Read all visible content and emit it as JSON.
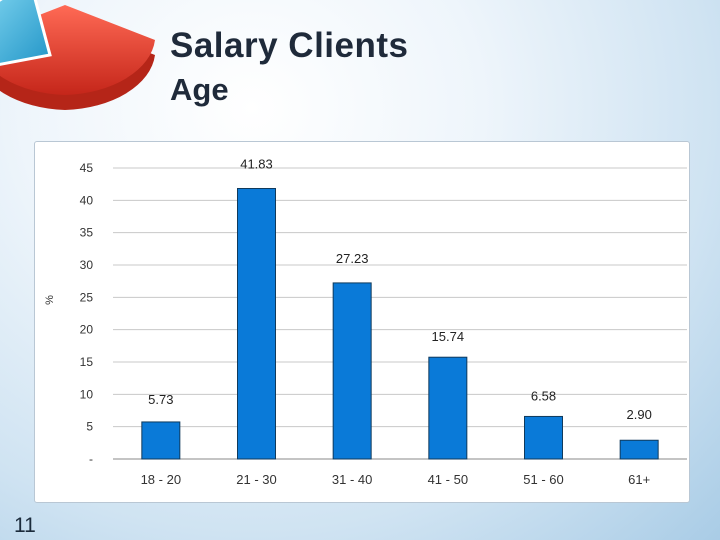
{
  "slide": {
    "title": "Salary Clients",
    "subtitle": "Age",
    "page_number": "11"
  },
  "colors": {
    "bar": "#0a7ad8",
    "bar_outline": "#103a5c",
    "logo_red": "#e23a2a",
    "logo_cyan": "#2aaedc"
  },
  "chart_data": {
    "type": "bar",
    "title": "",
    "xlabel": "",
    "ylabel": "%",
    "categories": [
      "18 - 20",
      "21 - 30",
      "31 - 40",
      "41 - 50",
      "51 - 60",
      "61+"
    ],
    "values": [
      5.73,
      41.83,
      27.23,
      15.74,
      6.58,
      2.9
    ],
    "value_labels": [
      "5.73",
      "41.83",
      "27.23",
      "15.74",
      "6.58",
      "2.90"
    ],
    "ylim": [
      0,
      45
    ],
    "yticks": [
      0,
      5,
      10,
      15,
      20,
      25,
      30,
      35,
      40,
      45
    ],
    "ytick_labels": [
      "-",
      "5",
      "10",
      "15",
      "20",
      "25",
      "30",
      "35",
      "40",
      "45"
    ],
    "grid": true,
    "legend": "none"
  }
}
